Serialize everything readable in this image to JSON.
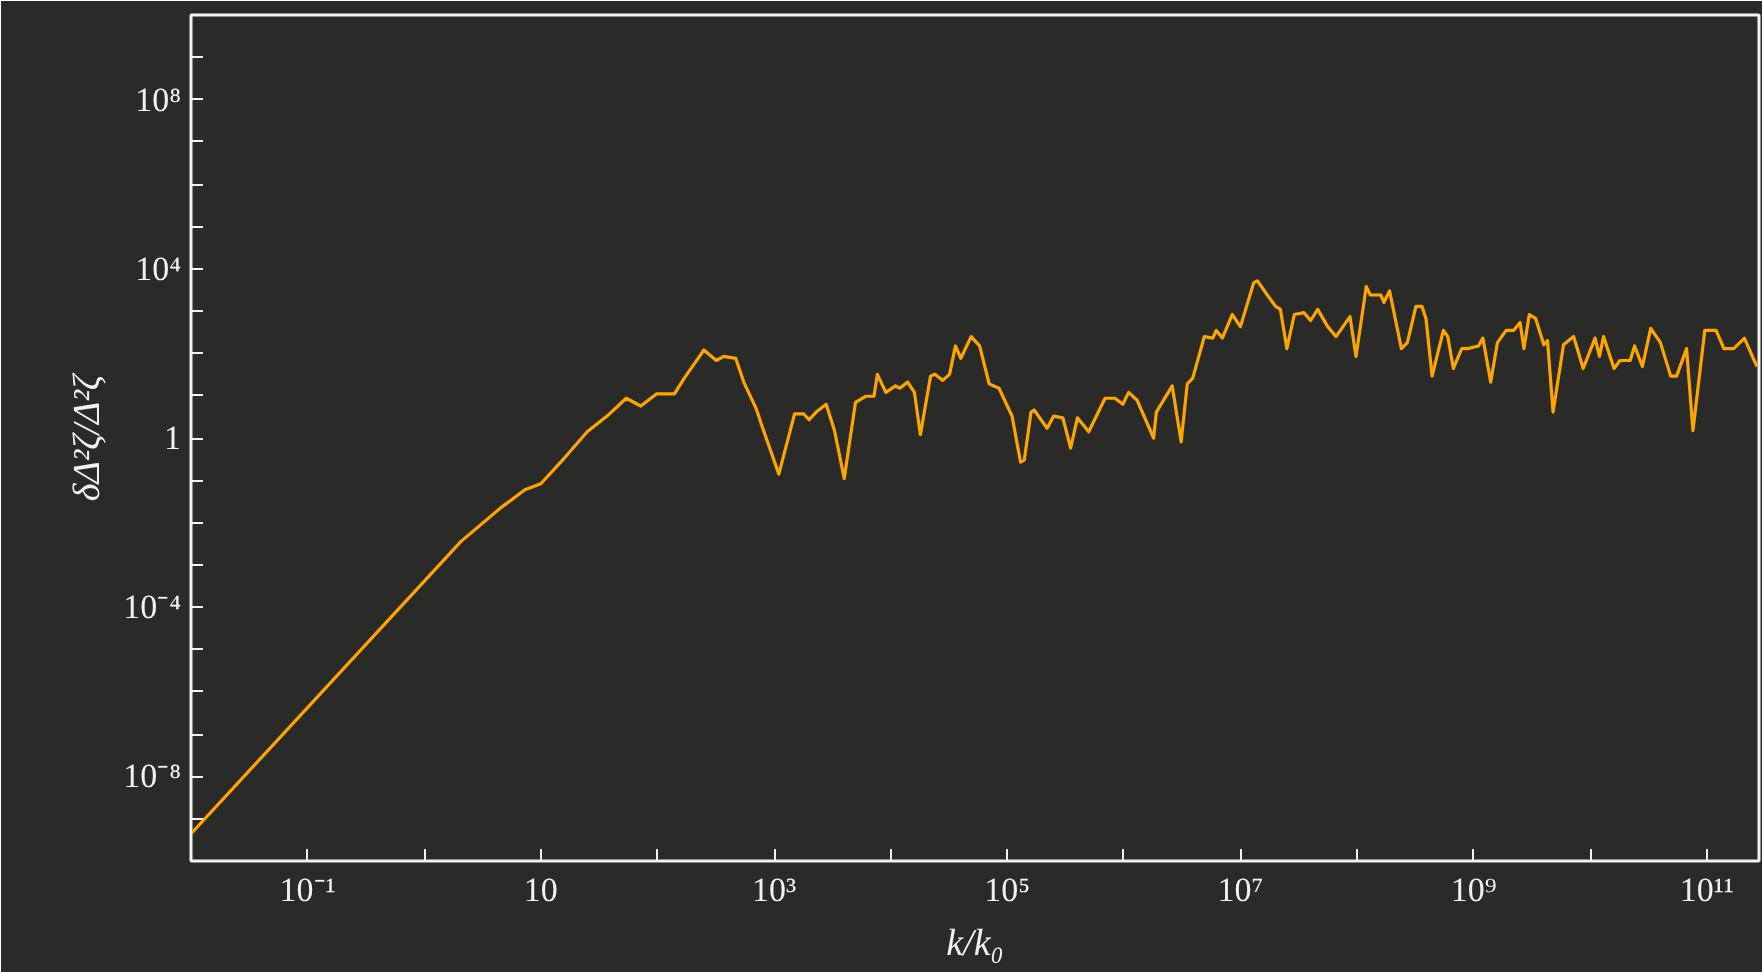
{
  "chart_data": {
    "type": "line",
    "xlabel": "k/k₀",
    "ylabel": "δΔ²ζ/Δ²ζ",
    "log": "xy",
    "grid": false,
    "marker": "none",
    "line_style": "solid",
    "xlim": [
      0.01,
      280000000000.0
    ],
    "ylim": [
      1e-10,
      10000000000.0
    ],
    "xticks": [
      {
        "value": 0.01,
        "label": null
      },
      {
        "value": 0.1,
        "label": "10⁻¹"
      },
      {
        "value": 1,
        "label": null
      },
      {
        "value": 10,
        "label": "10"
      },
      {
        "value": 100,
        "label": null
      },
      {
        "value": 1000,
        "label": "10³"
      },
      {
        "value": 10000.0,
        "label": null
      },
      {
        "value": 100000.0,
        "label": "10⁵"
      },
      {
        "value": 1000000.0,
        "label": null
      },
      {
        "value": 10000000.0,
        "label": "10⁷"
      },
      {
        "value": 100000000.0,
        "label": null
      },
      {
        "value": 1000000000.0,
        "label": "10⁹"
      },
      {
        "value": 10000000000.0,
        "label": null
      },
      {
        "value": 100000000000.0,
        "label": "10¹¹"
      }
    ],
    "yticks": [
      {
        "value": 1e-10,
        "label": null
      },
      {
        "value": 1e-09,
        "label": null
      },
      {
        "value": 1e-08,
        "label": "10⁻⁸"
      },
      {
        "value": 1e-07,
        "label": null
      },
      {
        "value": 1e-06,
        "label": null
      },
      {
        "value": 1e-05,
        "label": null
      },
      {
        "value": 0.0001,
        "label": "10⁻⁴"
      },
      {
        "value": 0.001,
        "label": null
      },
      {
        "value": 0.01,
        "label": null
      },
      {
        "value": 0.1,
        "label": null
      },
      {
        "value": 1,
        "label": "1"
      },
      {
        "value": 10,
        "label": null
      },
      {
        "value": 100,
        "label": null
      },
      {
        "value": 1000,
        "label": null
      },
      {
        "value": 10000.0,
        "label": "10⁴"
      },
      {
        "value": 100000.0,
        "label": null
      },
      {
        "value": 1000000.0,
        "label": null
      },
      {
        "value": 10000000.0,
        "label": null
      },
      {
        "value": 100000000.0,
        "label": "10⁸"
      },
      {
        "value": 1000000000.0,
        "label": null
      }
    ],
    "series": [
      {
        "color": "#ffa500",
        "x": [
          0.01,
          2.07,
          4.5,
          7.3,
          10,
          16,
          25,
          37,
          54,
          72,
          98,
          140,
          170,
          250,
          320,
          370,
          470,
          550,
          700,
          820,
          1100,
          1500,
          1800,
          2000,
          2300,
          2800,
          3300,
          4000,
          5000,
          6100,
          7200,
          7700,
          9100,
          11000.0,
          12000.0,
          14000.0,
          16000.0,
          18000.0,
          22000.0,
          24000.0,
          28000.0,
          32000.0,
          36000.0,
          40000.0,
          49000.0,
          58000.0,
          70000.0,
          85000.0,
          110000.0,
          130000.0,
          140000.0,
          160000.0,
          170000.0,
          220000.0,
          250000.0,
          300000.0,
          350000.0,
          400000.0,
          500000.0,
          690000.0,
          840000.0,
          980000.0,
          1100000.0,
          1300000.0,
          1800000.0,
          1900000.0,
          2600000.0,
          3100000.0,
          3500000.0,
          3900000.0,
          4900000.0,
          5800000.0,
          6200000.0,
          7000000.0,
          8500000.0,
          10000000.0,
          13000000.0,
          14000000.0,
          17000000.0,
          20000000.0,
          22000000.0,
          25000000.0,
          29000000.0,
          35000000.0,
          40000000.0,
          46000000.0,
          56000000.0,
          66000000.0,
          87000000.0,
          98000000.0,
          120000000.0,
          130000000.0,
          160000000.0,
          170000000.0,
          190000000.0,
          240000000.0,
          270000000.0,
          320000000.0,
          360000000.0,
          390000000.0,
          440000000.0,
          550000000.0,
          600000000.0,
          670000000.0,
          790000000.0,
          890000000.0,
          1100000000.0,
          1200000000.0,
          1400000000.0,
          1600000000.0,
          1900000000.0,
          2200000000.0,
          2500000000.0,
          2700000000.0,
          3000000000.0,
          3400000000.0,
          4000000000.0,
          4300000000.0,
          4800000000.0,
          5900000000.0,
          7200000000.0,
          8700000000.0,
          11000000000.0,
          12000000000.0,
          13000000000.0,
          16000000000.0,
          18000000000.0,
          22000000000.0,
          24000000000.0,
          28000000000.0,
          33000000000.0,
          40000000000.0,
          49000000000.0,
          55000000000.0,
          67000000000.0,
          76000000000.0,
          96000000000.0,
          120000000000.0,
          140000000000.0,
          170000000000.0,
          210000000000.0,
          250000000000.0,
          270000000000.0
        ],
        "values": [
          4.4e-10,
          0.0036,
          0.022,
          0.06,
          0.083,
          0.34,
          1.4,
          3.3,
          8.7,
          5.7,
          11,
          11,
          26,
          120,
          68,
          85,
          76,
          21,
          5.1,
          1.4,
          0.14,
          3.7,
          3.7,
          2.7,
          4.1,
          6.3,
          1.5,
          0.11,
          7.0,
          9.7,
          9.7,
          32,
          12,
          17,
          15,
          21,
          12,
          1.2,
          29,
          32,
          23,
          32,
          150,
          76,
          250,
          150,
          19,
          15,
          3.3,
          0.27,
          0.3,
          4.1,
          4.6,
          1.7,
          3.3,
          3.0,
          0.58,
          3.0,
          1.4,
          8.7,
          8.7,
          6.3,
          12,
          7.8,
          1,
          4.1,
          17,
          0.81,
          19,
          26,
          250,
          230,
          350,
          230,
          830,
          430,
          4700,
          5200,
          2400,
          1300,
          1100,
          130,
          830,
          920,
          600,
          1100,
          430,
          250,
          740,
          85,
          3800,
          2400,
          2400,
          1600,
          3000,
          130,
          180,
          1300,
          1300,
          670,
          29,
          350,
          250,
          44,
          130,
          130,
          150,
          230,
          21,
          180,
          350,
          350,
          540,
          130,
          830,
          670,
          160,
          200,
          4.1,
          160,
          250,
          44,
          230,
          85,
          250,
          44,
          68,
          68,
          150,
          49,
          390,
          180,
          29,
          29,
          130,
          1.5,
          350,
          350,
          130,
          130,
          230,
          76,
          49
        ]
      }
    ]
  }
}
